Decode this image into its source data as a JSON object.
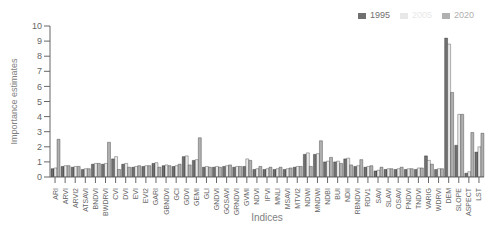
{
  "chart_data": {
    "type": "bar",
    "xlabel": "Indices",
    "ylabel": "Importance estimates",
    "categories": [
      "ARI",
      "ARVI",
      "ARVI2",
      "ATSAVI",
      "BNDVI",
      "BWDRVI",
      "CVI",
      "DVI",
      "EVI",
      "EVI2",
      "GARI",
      "GBNDVI",
      "GCI",
      "GDVI",
      "GEMI",
      "GLI",
      "GNDVI",
      "GOSAVI",
      "GRNDVI",
      "GVMI",
      "NDVI",
      "IPVI",
      "MNLI",
      "MSAVI",
      "MTVI2",
      "NDWI",
      "MNDWI",
      "NDBI",
      "BUI",
      "NDII",
      "RBNDVI",
      "RDV1",
      "SAVI",
      "SLAVI",
      "OSAVI",
      "PNDVI",
      "TNDVI",
      "VARIG",
      "WDRVI",
      "DEM",
      "SLOPE",
      "ASPECT",
      "LST"
    ],
    "series": [
      {
        "name": "1995",
        "color": "#707070",
        "values": [
          0.55,
          0.7,
          0.65,
          0.5,
          0.85,
          0.85,
          1.2,
          0.85,
          0.65,
          0.7,
          0.9,
          0.75,
          0.7,
          1.35,
          1.1,
          0.65,
          0.65,
          0.7,
          0.65,
          0.7,
          0.5,
          0.5,
          0.5,
          0.5,
          0.65,
          1.5,
          1.5,
          1.0,
          1.0,
          1.2,
          0.7,
          0.65,
          0.4,
          0.5,
          0.5,
          0.5,
          0.5,
          1.4,
          0.5,
          9.2,
          2.1,
          0.25,
          1.65
        ]
      },
      {
        "name": "2005",
        "color": "#e8e8e8",
        "values": [
          0.6,
          0.75,
          0.7,
          0.55,
          0.9,
          0.9,
          1.35,
          0.9,
          0.7,
          0.75,
          0.95,
          0.8,
          0.75,
          1.4,
          1.15,
          0.7,
          0.7,
          0.75,
          0.7,
          1.2,
          0.55,
          0.55,
          0.55,
          0.55,
          0.7,
          1.6,
          1.55,
          1.05,
          1.05,
          1.25,
          0.75,
          0.7,
          0.45,
          0.55,
          0.55,
          0.55,
          0.6,
          1.1,
          0.55,
          8.8,
          4.15,
          0.35,
          2.0
        ]
      },
      {
        "name": "2020",
        "color": "#b0b0b0",
        "values": [
          2.5,
          0.75,
          0.7,
          0.55,
          0.9,
          2.3,
          0.5,
          0.65,
          0.75,
          0.75,
          0.65,
          0.75,
          0.85,
          0.8,
          2.6,
          0.65,
          0.65,
          0.8,
          0.7,
          1.1,
          0.7,
          0.65,
          0.65,
          0.6,
          0.7,
          0.7,
          2.4,
          1.3,
          0.9,
          0.8,
          1.15,
          0.75,
          0.65,
          0.55,
          0.65,
          0.55,
          0.6,
          0.85,
          0.55,
          5.6,
          4.15,
          2.95,
          2.9
        ]
      }
    ],
    "ylim": [
      0,
      10
    ],
    "yticks": [
      0,
      1,
      2,
      3,
      4,
      5,
      6,
      7,
      8,
      9,
      10
    ],
    "grid": false,
    "legend": "upper right"
  }
}
